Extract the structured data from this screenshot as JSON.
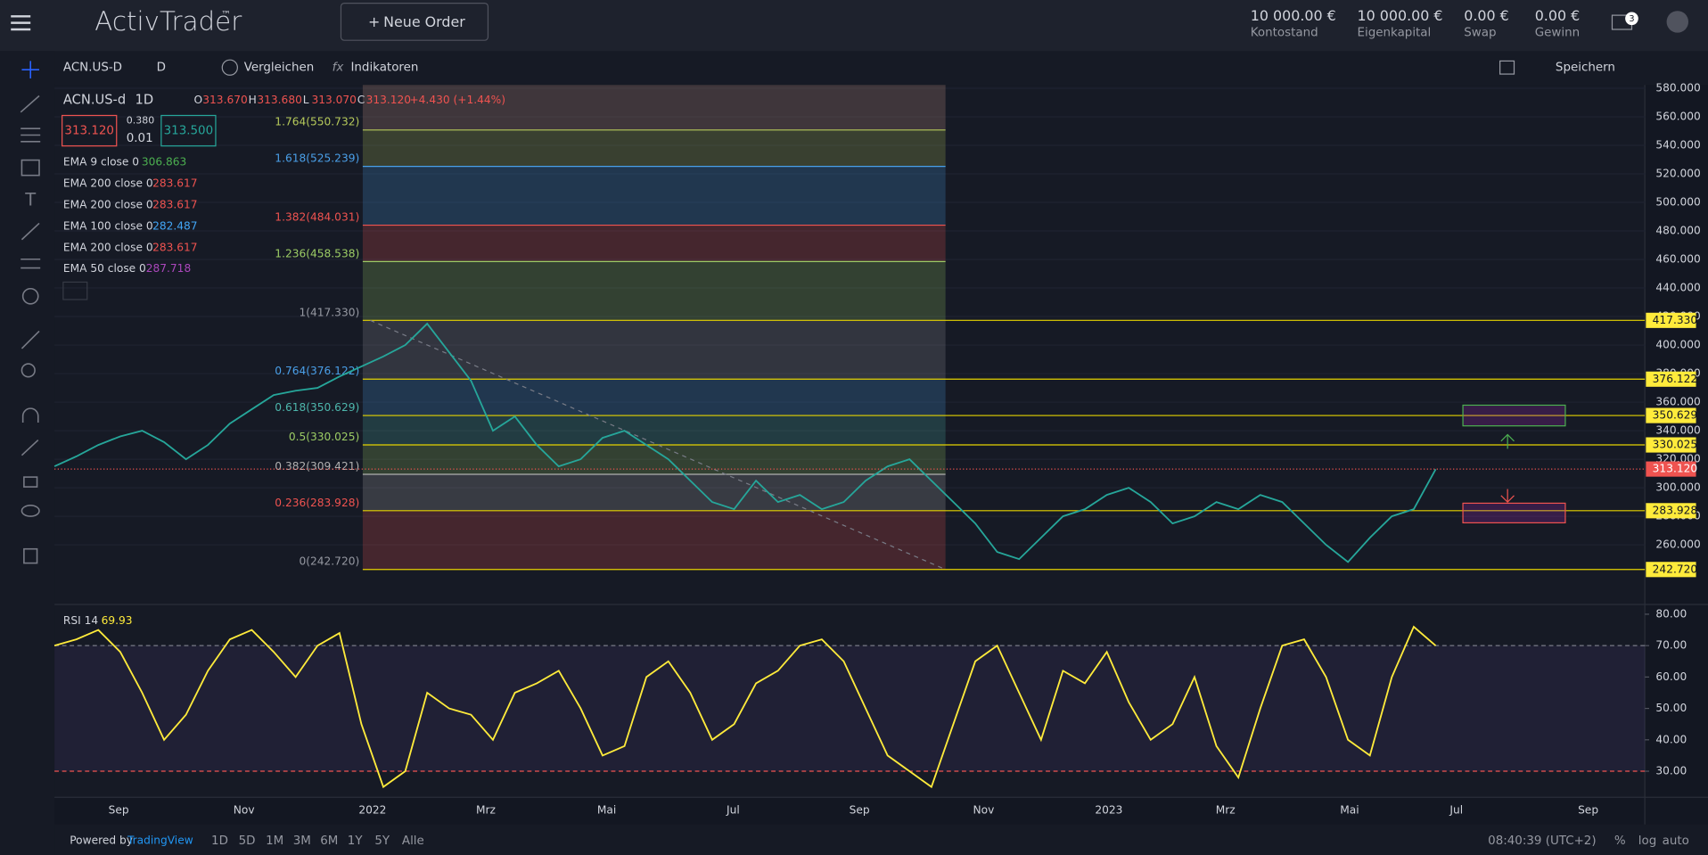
{
  "header": {
    "logo": "ActivTrader",
    "logo_mark": "™",
    "new_order": "Neue Order",
    "account": [
      {
        "value": "10 000.00 €",
        "label": "Kontostand"
      },
      {
        "value": "10 000.00 €",
        "label": "Eigenkapital"
      },
      {
        "value": "0.00 €",
        "label": "Swap"
      },
      {
        "value": "0.00 €",
        "label": "Gewinn"
      }
    ],
    "notifications": "3"
  },
  "toolbar": {
    "symbol": "ACN.US-D",
    "interval": "D",
    "compare": "Vergleichen",
    "indicators": "Indikatoren",
    "save": "Speichern"
  },
  "legend": {
    "symbol": "ACN.US-d",
    "interval": "1D",
    "ohlc": [
      {
        "key": "O",
        "value": "313.670"
      },
      {
        "key": "H",
        "value": "313.680"
      },
      {
        "key": "L",
        "value": "313.070"
      },
      {
        "key": "C",
        "value": "313.120"
      }
    ],
    "change": "+4.430 (+1.44%)",
    "bid": "313.120",
    "spread": "0.380",
    "step": "0.01",
    "ask": "313.500",
    "indicators": [
      {
        "name": "EMA 9 close 0",
        "value": "306.863",
        "color": "#4caf50"
      },
      {
        "name": "EMA 200 close 0",
        "value": "283.617",
        "color": "#ef5350"
      },
      {
        "name": "EMA 200 close 0",
        "value": "283.617",
        "color": "#ef5350"
      },
      {
        "name": "EMA 100 close 0",
        "value": "282.487",
        "color": "#42a5f5"
      },
      {
        "name": "EMA 200 close 0",
        "value": "283.617",
        "color": "#ef5350"
      },
      {
        "name": "EMA 50 close 0",
        "value": "287.718",
        "color": "#ab47bc"
      }
    ]
  },
  "chart_data": {
    "type": "line",
    "color": "#26a69a",
    "values": [
      315,
      322,
      330,
      336,
      340,
      332,
      320,
      330,
      345,
      355,
      365,
      368,
      370,
      378,
      385,
      392,
      400,
      415,
      395,
      375,
      340,
      350,
      330,
      315,
      320,
      335,
      340,
      330,
      320,
      305,
      290,
      285,
      305,
      290,
      295,
      285,
      290,
      305,
      315,
      320,
      305,
      290,
      275,
      255,
      250,
      265,
      280,
      285,
      295,
      300,
      290,
      275,
      280,
      290,
      285,
      295,
      290,
      275,
      260,
      248,
      265,
      280,
      285,
      313
    ],
    "ylim": [
      218.2,
      582.3
    ],
    "yticks": [
      {
        "value": 260,
        "label": "260.000"
      },
      {
        "value": 280,
        "label": "280.000"
      },
      {
        "value": 300,
        "label": "300.000"
      },
      {
        "value": 320,
        "label": "320.000"
      },
      {
        "value": 340,
        "label": "340.000"
      },
      {
        "value": 360,
        "label": "360.000"
      },
      {
        "value": 380,
        "label": "380.000"
      },
      {
        "value": 400,
        "label": "400.000"
      },
      {
        "value": 420,
        "label": "420.000"
      },
      {
        "value": 440,
        "label": "440.000"
      },
      {
        "value": 460,
        "label": "460.000"
      },
      {
        "value": 480,
        "label": "480.000"
      },
      {
        "value": 500,
        "label": "500.000"
      },
      {
        "value": 520,
        "label": "520.000"
      },
      {
        "value": 540,
        "label": "540.000"
      },
      {
        "value": 560,
        "label": "560.000"
      },
      {
        "value": 580,
        "label": "580.000"
      }
    ],
    "last_price": {
      "value": 313.12,
      "label": "313.120"
    },
    "fib_levels": [
      {
        "value": 550.732,
        "label": "1.764(550.732)",
        "color": "#b5c95a"
      },
      {
        "value": 525.239,
        "label": "1.618(525.239)",
        "color": "#4a9fe8"
      },
      {
        "value": 484.031,
        "label": "1.382(484.031)",
        "color": "#ef5350"
      },
      {
        "value": 458.538,
        "label": "1.236(458.538)",
        "color": "#9ccc65"
      },
      {
        "value": 417.33,
        "label": "1(417.330)",
        "color": "#9598a1",
        "tag": "417.330"
      },
      {
        "value": 376.122,
        "label": "0.764(376.122)",
        "color": "#4a9fe8",
        "tag": "376.122"
      },
      {
        "value": 350.629,
        "label": "0.618(350.629)",
        "color": "#4db6ac",
        "tag": "350.629"
      },
      {
        "value": 330.025,
        "label": "0.5(330.025)",
        "color": "#9ccc65",
        "tag": "330.025"
      },
      {
        "value": 309.421,
        "label": "0.382(309.421)",
        "color": "#b0b0b0"
      },
      {
        "value": 283.928,
        "label": "0.236(283.928)",
        "color": "#ef5350",
        "tag": "283.928"
      },
      {
        "value": 242.72,
        "label": "0(242.720)",
        "color": "#9598a1",
        "tag": "242.720"
      }
    ],
    "x_labels": [
      "Sep",
      "Nov",
      "2022",
      "Mrz",
      "Mai",
      "Jul",
      "Sep",
      "Nov",
      "2023",
      "Mrz",
      "Mai",
      "Jul",
      "Sep"
    ]
  },
  "rsi": {
    "label": "RSI 14",
    "last": "69.93",
    "color": "#ffeb3b",
    "values": [
      70,
      72,
      75,
      68,
      55,
      40,
      48,
      62,
      72,
      75,
      68,
      60,
      70,
      74,
      45,
      25,
      30,
      55,
      50,
      48,
      40,
      55,
      58,
      62,
      50,
      35,
      38,
      60,
      65,
      55,
      40,
      45,
      58,
      62,
      70,
      72,
      65,
      50,
      35,
      30,
      25,
      45,
      65,
      70,
      55,
      40,
      62,
      58,
      68,
      52,
      40,
      45,
      60,
      38,
      28,
      50,
      70,
      72,
      60,
      40,
      35,
      60,
      76,
      70
    ],
    "ylim": [
      21.7,
      83.1
    ],
    "yticks": [
      {
        "value": 30,
        "label": "30.00"
      },
      {
        "value": 40,
        "label": "40.00"
      },
      {
        "value": 50,
        "label": "50.00"
      },
      {
        "value": 60,
        "label": "60.00"
      },
      {
        "value": 70,
        "label": "70.00"
      },
      {
        "value": 80,
        "label": "80.00"
      }
    ],
    "bands": [
      70,
      30
    ]
  },
  "footer": {
    "powered": "Powered by",
    "brand": "TradingView",
    "ranges": [
      "1D",
      "5D",
      "1M",
      "3M",
      "6M",
      "1Y",
      "5Y",
      "Alle"
    ],
    "time": "08:40:39 (UTC+2)",
    "scale_opts": [
      "%",
      "log",
      "auto"
    ]
  }
}
